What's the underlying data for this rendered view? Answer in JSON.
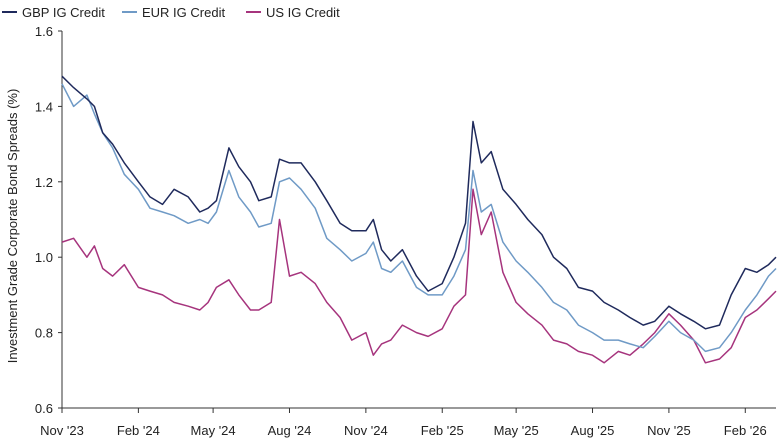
{
  "chart_data": {
    "type": "line",
    "title": "",
    "ylabel": "Investment Grade Corporate Bond Spreads (%)",
    "xlabel": "",
    "ylim": [
      0.6,
      1.6
    ],
    "yticks": [
      "0.6",
      "0.8",
      "1.0",
      "1.2",
      "1.4",
      "1.6"
    ],
    "xlim": [
      "2023-11-01",
      "2026-03-10"
    ],
    "xticks": [
      {
        "date": "2023-11-01",
        "label": "Nov '23"
      },
      {
        "date": "2024-02-01",
        "label": "Feb '24"
      },
      {
        "date": "2024-05-01",
        "label": "May '24"
      },
      {
        "date": "2024-08-01",
        "label": "Aug '24"
      },
      {
        "date": "2024-11-01",
        "label": "Nov '24"
      },
      {
        "date": "2025-02-01",
        "label": "Feb '25"
      },
      {
        "date": "2025-05-01",
        "label": "May '25"
      },
      {
        "date": "2025-08-01",
        "label": "Aug '25"
      },
      {
        "date": "2025-11-01",
        "label": "Nov '25"
      },
      {
        "date": "2026-02-01",
        "label": "Feb '26"
      }
    ],
    "legend": "top-left",
    "grid": false,
    "series": [
      {
        "name": "GBP IG Credit",
        "color": "#1f2a5c",
        "points": [
          [
            "2023-11-01",
            1.48
          ],
          [
            "2023-11-15",
            1.45
          ],
          [
            "2023-12-01",
            1.42
          ],
          [
            "2023-12-10",
            1.4
          ],
          [
            "2023-12-20",
            1.33
          ],
          [
            "2024-01-01",
            1.3
          ],
          [
            "2024-01-15",
            1.25
          ],
          [
            "2024-02-01",
            1.2
          ],
          [
            "2024-02-15",
            1.16
          ],
          [
            "2024-03-01",
            1.14
          ],
          [
            "2024-03-15",
            1.18
          ],
          [
            "2024-04-01",
            1.16
          ],
          [
            "2024-04-15",
            1.12
          ],
          [
            "2024-04-25",
            1.13
          ],
          [
            "2024-05-05",
            1.15
          ],
          [
            "2024-05-20",
            1.29
          ],
          [
            "2024-06-01",
            1.24
          ],
          [
            "2024-06-15",
            1.2
          ],
          [
            "2024-06-25",
            1.15
          ],
          [
            "2024-07-10",
            1.16
          ],
          [
            "2024-07-20",
            1.26
          ],
          [
            "2024-08-01",
            1.25
          ],
          [
            "2024-08-15",
            1.25
          ],
          [
            "2024-09-01",
            1.2
          ],
          [
            "2024-09-15",
            1.15
          ],
          [
            "2024-10-01",
            1.09
          ],
          [
            "2024-10-15",
            1.07
          ],
          [
            "2024-11-01",
            1.07
          ],
          [
            "2024-11-10",
            1.1
          ],
          [
            "2024-11-20",
            1.02
          ],
          [
            "2024-12-01",
            0.99
          ],
          [
            "2024-12-15",
            1.02
          ],
          [
            "2025-01-01",
            0.95
          ],
          [
            "2025-01-15",
            0.91
          ],
          [
            "2025-02-01",
            0.93
          ],
          [
            "2025-02-15",
            1.0
          ],
          [
            "2025-03-01",
            1.09
          ],
          [
            "2025-03-10",
            1.36
          ],
          [
            "2025-03-20",
            1.25
          ],
          [
            "2025-04-01",
            1.28
          ],
          [
            "2025-04-15",
            1.18
          ],
          [
            "2025-05-01",
            1.14
          ],
          [
            "2025-05-15",
            1.1
          ],
          [
            "2025-06-01",
            1.06
          ],
          [
            "2025-06-15",
            1.0
          ],
          [
            "2025-07-01",
            0.97
          ],
          [
            "2025-07-15",
            0.92
          ],
          [
            "2025-08-01",
            0.91
          ],
          [
            "2025-08-15",
            0.88
          ],
          [
            "2025-09-01",
            0.86
          ],
          [
            "2025-09-15",
            0.84
          ],
          [
            "2025-10-01",
            0.82
          ],
          [
            "2025-10-15",
            0.83
          ],
          [
            "2025-11-01",
            0.87
          ],
          [
            "2025-11-15",
            0.85
          ],
          [
            "2025-12-01",
            0.83
          ],
          [
            "2025-12-15",
            0.81
          ],
          [
            "2026-01-01",
            0.82
          ],
          [
            "2026-01-15",
            0.9
          ],
          [
            "2026-02-01",
            0.97
          ],
          [
            "2026-02-15",
            0.96
          ],
          [
            "2026-03-01",
            0.98
          ],
          [
            "2026-03-10",
            1.0
          ]
        ]
      },
      {
        "name": "EUR IG Credit",
        "color": "#6f9ac6",
        "points": [
          [
            "2023-11-01",
            1.46
          ],
          [
            "2023-11-15",
            1.4
          ],
          [
            "2023-12-01",
            1.43
          ],
          [
            "2023-12-10",
            1.38
          ],
          [
            "2023-12-20",
            1.33
          ],
          [
            "2024-01-01",
            1.29
          ],
          [
            "2024-01-15",
            1.22
          ],
          [
            "2024-02-01",
            1.18
          ],
          [
            "2024-02-15",
            1.13
          ],
          [
            "2024-03-01",
            1.12
          ],
          [
            "2024-03-15",
            1.11
          ],
          [
            "2024-04-01",
            1.09
          ],
          [
            "2024-04-15",
            1.1
          ],
          [
            "2024-04-25",
            1.09
          ],
          [
            "2024-05-05",
            1.12
          ],
          [
            "2024-05-20",
            1.23
          ],
          [
            "2024-06-01",
            1.16
          ],
          [
            "2024-06-15",
            1.12
          ],
          [
            "2024-06-25",
            1.08
          ],
          [
            "2024-07-10",
            1.09
          ],
          [
            "2024-07-20",
            1.2
          ],
          [
            "2024-08-01",
            1.21
          ],
          [
            "2024-08-15",
            1.18
          ],
          [
            "2024-09-01",
            1.13
          ],
          [
            "2024-09-15",
            1.05
          ],
          [
            "2024-10-01",
            1.02
          ],
          [
            "2024-10-15",
            0.99
          ],
          [
            "2024-11-01",
            1.01
          ],
          [
            "2024-11-10",
            1.04
          ],
          [
            "2024-11-20",
            0.97
          ],
          [
            "2024-12-01",
            0.96
          ],
          [
            "2024-12-15",
            0.99
          ],
          [
            "2025-01-01",
            0.92
          ],
          [
            "2025-01-15",
            0.9
          ],
          [
            "2025-02-01",
            0.9
          ],
          [
            "2025-02-15",
            0.95
          ],
          [
            "2025-03-01",
            1.02
          ],
          [
            "2025-03-10",
            1.23
          ],
          [
            "2025-03-20",
            1.12
          ],
          [
            "2025-04-01",
            1.14
          ],
          [
            "2025-04-15",
            1.04
          ],
          [
            "2025-05-01",
            0.99
          ],
          [
            "2025-05-15",
            0.96
          ],
          [
            "2025-06-01",
            0.92
          ],
          [
            "2025-06-15",
            0.88
          ],
          [
            "2025-07-01",
            0.86
          ],
          [
            "2025-07-15",
            0.82
          ],
          [
            "2025-08-01",
            0.8
          ],
          [
            "2025-08-15",
            0.78
          ],
          [
            "2025-09-01",
            0.78
          ],
          [
            "2025-09-15",
            0.77
          ],
          [
            "2025-10-01",
            0.76
          ],
          [
            "2025-10-15",
            0.79
          ],
          [
            "2025-11-01",
            0.83
          ],
          [
            "2025-11-15",
            0.8
          ],
          [
            "2025-12-01",
            0.78
          ],
          [
            "2025-12-15",
            0.75
          ],
          [
            "2026-01-01",
            0.76
          ],
          [
            "2026-01-15",
            0.8
          ],
          [
            "2026-02-01",
            0.86
          ],
          [
            "2026-02-15",
            0.9
          ],
          [
            "2026-03-01",
            0.95
          ],
          [
            "2026-03-10",
            0.97
          ]
        ]
      },
      {
        "name": "US IG Credit",
        "color": "#a6347d",
        "points": [
          [
            "2023-11-01",
            1.04
          ],
          [
            "2023-11-15",
            1.05
          ],
          [
            "2023-12-01",
            1.0
          ],
          [
            "2023-12-10",
            1.03
          ],
          [
            "2023-12-20",
            0.97
          ],
          [
            "2024-01-01",
            0.95
          ],
          [
            "2024-01-15",
            0.98
          ],
          [
            "2024-02-01",
            0.92
          ],
          [
            "2024-02-15",
            0.91
          ],
          [
            "2024-03-01",
            0.9
          ],
          [
            "2024-03-15",
            0.88
          ],
          [
            "2024-04-01",
            0.87
          ],
          [
            "2024-04-15",
            0.86
          ],
          [
            "2024-04-25",
            0.88
          ],
          [
            "2024-05-05",
            0.92
          ],
          [
            "2024-05-20",
            0.94
          ],
          [
            "2024-06-01",
            0.9
          ],
          [
            "2024-06-15",
            0.86
          ],
          [
            "2024-06-25",
            0.86
          ],
          [
            "2024-07-10",
            0.88
          ],
          [
            "2024-07-20",
            1.1
          ],
          [
            "2024-08-01",
            0.95
          ],
          [
            "2024-08-15",
            0.96
          ],
          [
            "2024-09-01",
            0.93
          ],
          [
            "2024-09-15",
            0.88
          ],
          [
            "2024-10-01",
            0.84
          ],
          [
            "2024-10-15",
            0.78
          ],
          [
            "2024-11-01",
            0.8
          ],
          [
            "2024-11-10",
            0.74
          ],
          [
            "2024-11-20",
            0.77
          ],
          [
            "2024-12-01",
            0.78
          ],
          [
            "2024-12-15",
            0.82
          ],
          [
            "2025-01-01",
            0.8
          ],
          [
            "2025-01-15",
            0.79
          ],
          [
            "2025-02-01",
            0.81
          ],
          [
            "2025-02-15",
            0.87
          ],
          [
            "2025-03-01",
            0.9
          ],
          [
            "2025-03-10",
            1.18
          ],
          [
            "2025-03-20",
            1.06
          ],
          [
            "2025-04-01",
            1.12
          ],
          [
            "2025-04-15",
            0.96
          ],
          [
            "2025-05-01",
            0.88
          ],
          [
            "2025-05-15",
            0.85
          ],
          [
            "2025-06-01",
            0.82
          ],
          [
            "2025-06-15",
            0.78
          ],
          [
            "2025-07-01",
            0.77
          ],
          [
            "2025-07-15",
            0.75
          ],
          [
            "2025-08-01",
            0.74
          ],
          [
            "2025-08-15",
            0.72
          ],
          [
            "2025-09-01",
            0.75
          ],
          [
            "2025-09-15",
            0.74
          ],
          [
            "2025-10-01",
            0.77
          ],
          [
            "2025-10-15",
            0.8
          ],
          [
            "2025-11-01",
            0.85
          ],
          [
            "2025-11-15",
            0.82
          ],
          [
            "2025-12-01",
            0.78
          ],
          [
            "2025-12-15",
            0.72
          ],
          [
            "2026-01-01",
            0.73
          ],
          [
            "2026-01-15",
            0.76
          ],
          [
            "2026-02-01",
            0.84
          ],
          [
            "2026-02-15",
            0.86
          ],
          [
            "2026-03-01",
            0.89
          ],
          [
            "2026-03-10",
            0.91
          ]
        ]
      }
    ]
  }
}
